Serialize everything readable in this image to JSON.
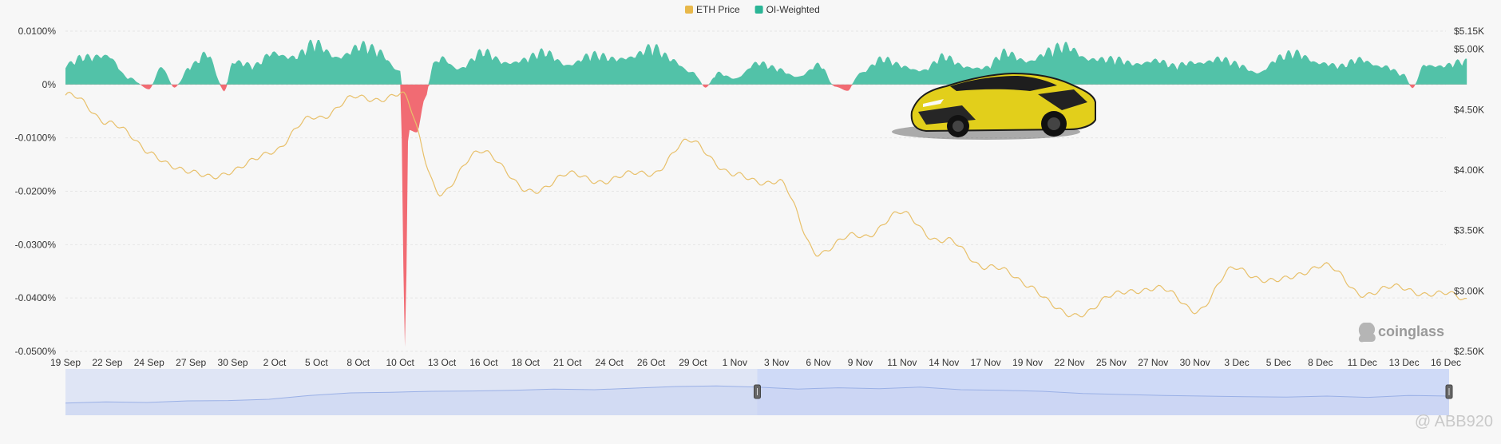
{
  "chart_data": {
    "type": "area",
    "legend": {
      "placement": "top-center",
      "items": [
        {
          "key": "price",
          "label": "ETH Price",
          "color": "#e8b84a"
        },
        {
          "key": "funding",
          "label": "OI-Weighted",
          "color": "#2bb596"
        }
      ]
    },
    "colors": {
      "price_line": "#e8c06a",
      "funding_positive": "#52c2a8",
      "funding_negative": "#f16b73",
      "navigator_fill": "#dfe5f5",
      "navigator_line": "#9ab0e6",
      "navigator_selected": "#cfdaf7"
    },
    "left_axis": {
      "ticks": [
        {
          "value": 0.0001,
          "label": "0.0100%"
        },
        {
          "value": 0,
          "label": "0%"
        },
        {
          "value": -0.0001,
          "label": "-0.0100%"
        },
        {
          "value": -0.0002,
          "label": "-0.0200%"
        },
        {
          "value": -0.0003,
          "label": "-0.0300%"
        },
        {
          "value": -0.0004,
          "label": "-0.0400%"
        },
        {
          "value": -0.0005,
          "label": "-0.0500%"
        }
      ],
      "range": [
        -0.0005,
        0.0001
      ]
    },
    "right_axis": {
      "ticks": [
        {
          "value": 5150,
          "label": "$5.15K"
        },
        {
          "value": 5000,
          "label": "$5.00K"
        },
        {
          "value": 4500,
          "label": "$4.50K"
        },
        {
          "value": 4000,
          "label": "$4.00K"
        },
        {
          "value": 3500,
          "label": "$3.50K"
        },
        {
          "value": 3000,
          "label": "$3.00K"
        },
        {
          "value": 2500,
          "label": "$2.50K"
        }
      ],
      "range": [
        2500,
        5150
      ]
    },
    "x_labels": [
      "19 Sep",
      "22 Sep",
      "24 Sep",
      "27 Sep",
      "30 Sep",
      "2 Oct",
      "5 Oct",
      "8 Oct",
      "10 Oct",
      "13 Oct",
      "16 Oct",
      "18 Oct",
      "21 Oct",
      "24 Oct",
      "26 Oct",
      "29 Oct",
      "1 Nov",
      "3 Nov",
      "6 Nov",
      "9 Nov",
      "11 Nov",
      "14 Nov",
      "17 Nov",
      "19 Nov",
      "22 Nov",
      "25 Nov",
      "27 Nov",
      "30 Nov",
      "3 Dec",
      "5 Dec",
      "8 Dec",
      "11 Dec",
      "13 Dec",
      "16 Dec"
    ],
    "series": [
      {
        "name": "ETH Price",
        "axis": "right",
        "x": [
          0,
          1,
          2,
          3,
          4,
          5,
          6,
          7,
          8,
          9,
          10,
          11,
          12,
          13,
          14,
          15,
          16,
          17,
          18,
          19,
          20,
          21,
          22,
          23,
          24,
          25,
          26,
          27,
          28,
          29,
          30,
          31,
          32,
          33,
          33.5
        ],
        "values": [
          4620,
          4420,
          4150,
          3960,
          3980,
          4180,
          4450,
          4590,
          4620,
          3820,
          4180,
          3820,
          3950,
          3920,
          3990,
          4240,
          3940,
          3910,
          3330,
          3460,
          3630,
          3410,
          3220,
          3060,
          2780,
          2950,
          3040,
          2850,
          3180,
          3070,
          3220,
          2990,
          3020,
          2960,
          2940
        ]
      },
      {
        "name": "OI-Weighted",
        "axis": "left",
        "x": [
          0,
          0.5,
          1,
          1.5,
          2,
          2.3,
          2.6,
          3,
          3.4,
          3.8,
          4,
          4.5,
          5,
          5.5,
          6,
          6.5,
          7,
          7.5,
          8,
          8.12,
          8.2,
          8.4,
          8.6,
          8.8,
          9,
          9.4,
          10,
          10.5,
          11,
          11.5,
          12,
          12.5,
          13,
          13.5,
          14,
          14.5,
          15,
          15.3,
          15.6,
          16,
          16.5,
          17,
          17.5,
          18,
          18.4,
          18.7,
          19,
          19.5,
          20,
          20.5,
          21,
          21.5,
          22,
          22.5,
          23,
          23.5,
          24,
          24.5,
          25,
          25.5,
          26,
          26.5,
          27,
          27.5,
          28,
          28.5,
          29,
          29.5,
          30,
          30.5,
          31,
          31.5,
          32,
          32.2,
          32.5,
          33,
          33.5
        ],
        "values": [
          4.5e-05,
          6e-05,
          7.5e-05,
          1.5e-05,
          -9e-06,
          4.5e-05,
          -6e-06,
          4e-05,
          7e-05,
          -1.3e-05,
          5.5e-05,
          4e-05,
          8e-05,
          6.5e-05,
          9e-05,
          7e-05,
          8.5e-05,
          7.5e-05,
          3.5e-05,
          -0.000495,
          -8.5e-05,
          -9e-05,
          -2.5e-05,
          4.5e-05,
          6.5e-05,
          4e-05,
          7e-05,
          5.5e-05,
          6e-05,
          7e-05,
          5e-05,
          6.5e-05,
          6e-05,
          7e-05,
          8e-05,
          6e-05,
          3e-05,
          -6e-06,
          2.5e-05,
          1.5e-05,
          5e-05,
          3.5e-05,
          2e-05,
          4.5e-05,
          -4e-06,
          -1.2e-05,
          3e-05,
          5.5e-05,
          4.5e-05,
          3.5e-05,
          6e-05,
          4.5e-05,
          4e-05,
          7e-05,
          6e-05,
          7.5e-05,
          8.5e-05,
          6.5e-05,
          5.5e-05,
          5e-05,
          6e-05,
          4e-05,
          5.5e-05,
          6e-05,
          4.5e-05,
          3e-05,
          6e-05,
          7e-05,
          5.5e-05,
          4e-05,
          6e-05,
          4.5e-05,
          2e-05,
          -7e-06,
          5e-05,
          4.5e-05,
          5e-05
        ]
      }
    ],
    "navigator": {
      "values": [
        0.18,
        0.22,
        0.2,
        0.25,
        0.26,
        0.3,
        0.42,
        0.5,
        0.52,
        0.55,
        0.56,
        0.58,
        0.62,
        0.6,
        0.65,
        0.7,
        0.72,
        0.68,
        0.62,
        0.66,
        0.63,
        0.68,
        0.6,
        0.58,
        0.55,
        0.48,
        0.45,
        0.42,
        0.4,
        0.38,
        0.37,
        0.4,
        0.36,
        0.42,
        0.4
      ],
      "selected_range": [
        0.5,
        1.0
      ]
    },
    "watermark": "coinglass",
    "credit": "@ ABB920"
  }
}
